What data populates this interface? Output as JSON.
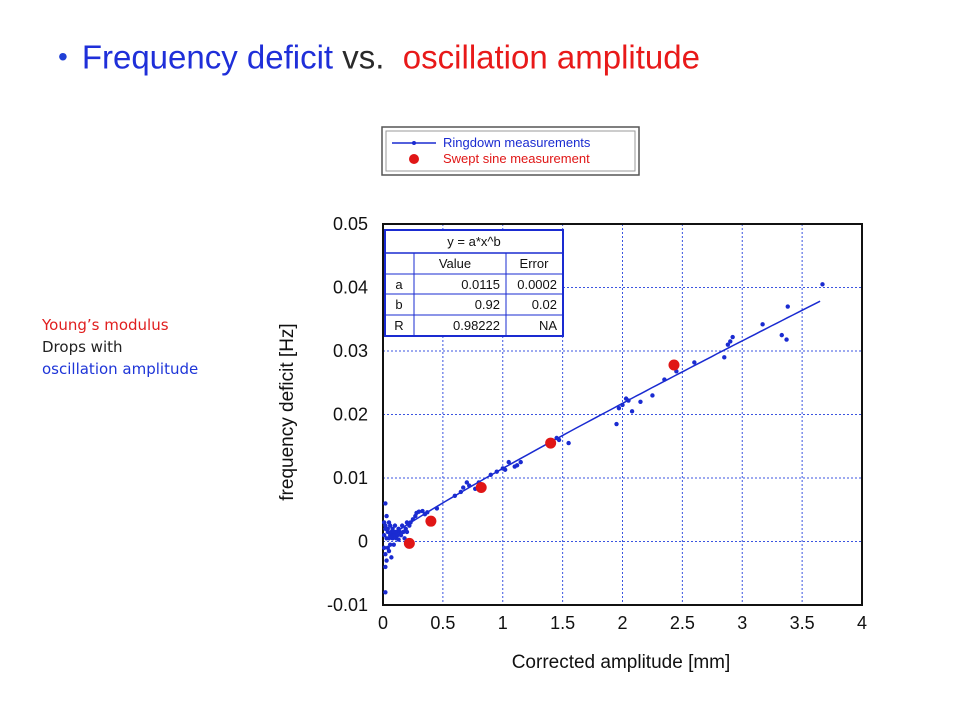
{
  "title": {
    "bullet": "•",
    "part1": "Frequency deficit",
    "part2": "vs.",
    "part3": "oscillation amplitude",
    "colors": {
      "part1": "#1f2fd9",
      "part2": "#2a2a2a",
      "part3": "#e81919"
    }
  },
  "side_note": {
    "line1": "Young’s modulus",
    "line2": "Drops with",
    "line3": "oscillation amplitude"
  },
  "chart_data": {
    "type": "scatter",
    "xlabel": "Corrected amplitude [mm]",
    "ylabel": "frequency deficit [Hz]",
    "xlim": [
      0,
      4
    ],
    "ylim": [
      -0.01,
      0.05
    ],
    "xticks": [
      "0",
      "0.5",
      "1",
      "1.5",
      "2",
      "2.5",
      "3",
      "3.5",
      "4"
    ],
    "yticks": [
      "-0.01",
      "0",
      "0.01",
      "0.02",
      "0.03",
      "0.04",
      "0.05"
    ],
    "grid": true,
    "legend": {
      "placement": "top, above plot",
      "entries": [
        {
          "label": "Ringdown measurements",
          "color": "#1a2bd1",
          "marker": "line+dot"
        },
        {
          "label": "Swept sine measurement",
          "color": "#e01616",
          "marker": "dot"
        }
      ]
    },
    "fit_table": {
      "title": "y = a*x^b",
      "columns": [
        "",
        "Value",
        "Error"
      ],
      "rows": [
        [
          "a",
          "0.0115",
          "0.0002"
        ],
        [
          "b",
          "0.92",
          "0.02"
        ],
        [
          "R",
          "0.98222",
          "NA"
        ]
      ]
    },
    "fit": {
      "a": 0.0115,
      "b": 0.92,
      "x_range": [
        0.02,
        3.65
      ]
    },
    "series": [
      {
        "name": "Ringdown measurements",
        "color": "#1a2bd1",
        "points": [
          [
            0.01,
            -0.001
          ],
          [
            0.01,
            0.001
          ],
          [
            0.01,
            0.003
          ],
          [
            0.02,
            0.0025
          ],
          [
            0.02,
            -0.002
          ],
          [
            0.02,
            0.002
          ],
          [
            0.02,
            -0.004
          ],
          [
            0.02,
            -0.008
          ],
          [
            0.02,
            0.006
          ],
          [
            0.03,
            0.004
          ],
          [
            0.03,
            -0.003
          ],
          [
            0.03,
            0.0005
          ],
          [
            0.04,
            0.002
          ],
          [
            0.04,
            -0.001
          ],
          [
            0.04,
            0.0015
          ],
          [
            0.05,
            0.0005
          ],
          [
            0.05,
            -0.0015
          ],
          [
            0.05,
            0.003
          ],
          [
            0.06,
            0.001
          ],
          [
            0.06,
            0.0025
          ],
          [
            0.06,
            -0.0005
          ],
          [
            0.07,
            0.0015
          ],
          [
            0.07,
            -0.0025
          ],
          [
            0.08,
            0.0005
          ],
          [
            0.08,
            0.001
          ],
          [
            0.08,
            0.002
          ],
          [
            0.09,
            -0.0005
          ],
          [
            0.09,
            0.0015
          ],
          [
            0.1,
            0.001
          ],
          [
            0.1,
            0.0025
          ],
          [
            0.11,
            0.0005
          ],
          [
            0.11,
            0.0015
          ],
          [
            0.12,
            0.001
          ],
          [
            0.13,
            0.002
          ],
          [
            0.13,
            0.0003
          ],
          [
            0.14,
            0.0015
          ],
          [
            0.15,
            0.001
          ],
          [
            0.16,
            0.0025
          ],
          [
            0.17,
            0.0015
          ],
          [
            0.18,
            0.0005
          ],
          [
            0.19,
            0.002
          ],
          [
            0.2,
            0.0015
          ],
          [
            0.2,
            0.003
          ],
          [
            0.22,
            0.0025
          ],
          [
            0.23,
            0.003
          ],
          [
            0.25,
            0.0035
          ],
          [
            0.27,
            0.004
          ],
          [
            0.28,
            0.0045
          ],
          [
            0.3,
            0.0047
          ],
          [
            0.33,
            0.0048
          ],
          [
            0.35,
            0.0043
          ],
          [
            0.37,
            0.0046
          ],
          [
            0.45,
            0.0052
          ],
          [
            0.6,
            0.0072
          ],
          [
            0.65,
            0.0078
          ],
          [
            0.67,
            0.0085
          ],
          [
            0.7,
            0.0093
          ],
          [
            0.72,
            0.0088
          ],
          [
            0.77,
            0.0083
          ],
          [
            0.8,
            0.0093
          ],
          [
            0.9,
            0.0105
          ],
          [
            0.95,
            0.011
          ],
          [
            1.0,
            0.0115
          ],
          [
            1.02,
            0.0113
          ],
          [
            1.05,
            0.0125
          ],
          [
            1.1,
            0.0118
          ],
          [
            1.12,
            0.012
          ],
          [
            1.15,
            0.0125
          ],
          [
            1.45,
            0.0163
          ],
          [
            1.47,
            0.016
          ],
          [
            1.55,
            0.0155
          ],
          [
            1.95,
            0.0185
          ],
          [
            1.97,
            0.021
          ],
          [
            2.0,
            0.0215
          ],
          [
            2.03,
            0.0225
          ],
          [
            2.05,
            0.0222
          ],
          [
            2.08,
            0.0205
          ],
          [
            2.15,
            0.022
          ],
          [
            2.25,
            0.023
          ],
          [
            2.35,
            0.0255
          ],
          [
            2.45,
            0.0268
          ],
          [
            2.6,
            0.0282
          ],
          [
            2.85,
            0.029
          ],
          [
            2.88,
            0.031
          ],
          [
            2.9,
            0.0315
          ],
          [
            2.92,
            0.0322
          ],
          [
            3.17,
            0.0342
          ],
          [
            3.33,
            0.0325
          ],
          [
            3.37,
            0.0318
          ],
          [
            3.38,
            0.037
          ],
          [
            3.67,
            0.0405
          ]
        ]
      },
      {
        "name": "Swept sine measurement",
        "color": "#e01616",
        "points": [
          [
            0.22,
            -0.0003
          ],
          [
            0.4,
            0.0032
          ],
          [
            0.82,
            0.0085
          ],
          [
            1.4,
            0.0155
          ],
          [
            2.43,
            0.0278
          ]
        ]
      }
    ]
  }
}
